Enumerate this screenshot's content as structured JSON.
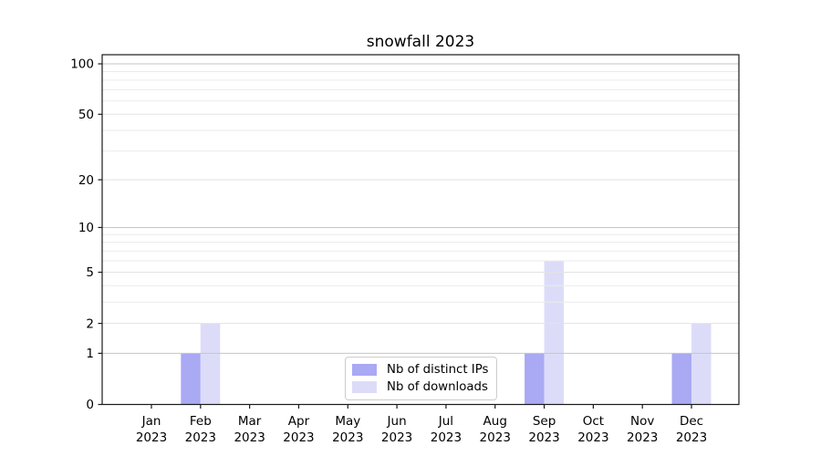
{
  "chart_data": {
    "type": "bar",
    "title": "snowfall 2023",
    "x_tick_year": "2023",
    "months": [
      "Jan",
      "Feb",
      "Mar",
      "Apr",
      "May",
      "Jun",
      "Jul",
      "Aug",
      "Sep",
      "Oct",
      "Nov",
      "Dec"
    ],
    "series": [
      {
        "name": "Nb of distinct IPs",
        "color": "#a9a9f4",
        "values": [
          0,
          1,
          0,
          0,
          0,
          0,
          0,
          0,
          1,
          0,
          0,
          1
        ]
      },
      {
        "name": "Nb of downloads",
        "color": "#dcdcf9",
        "values": [
          0,
          2,
          0,
          0,
          0,
          0,
          0,
          0,
          6,
          0,
          0,
          2
        ]
      }
    ],
    "y_scale": "log1p",
    "ylim": [
      0,
      114
    ],
    "y_ticks": [
      0,
      1,
      2,
      5,
      10,
      20,
      50,
      100
    ],
    "y_major_gridlines": [
      1,
      10,
      100
    ],
    "y_mid_gridlines": [
      2,
      5,
      20,
      50
    ],
    "y_minor_gridlines": [
      3,
      4,
      6,
      7,
      8,
      9,
      30,
      40,
      60,
      70,
      80,
      90
    ],
    "grid": true,
    "legend_position": "lower center",
    "colors": {
      "axis": "#1a1a1a",
      "text": "#000000",
      "grid_major": "#c6c6c6",
      "grid_mid": "#e2e2e2",
      "grid_minor": "#ebebeb",
      "legend_border": "#cccccc",
      "background": "#ffffff"
    }
  }
}
